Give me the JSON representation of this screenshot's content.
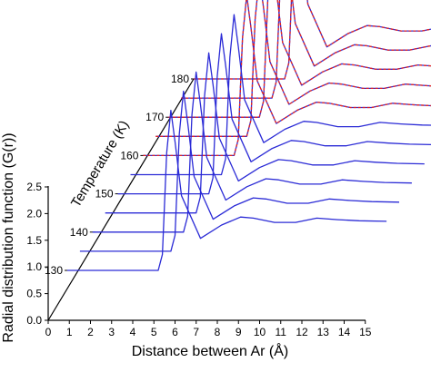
{
  "chart_data": {
    "type": "line",
    "style": "3d-waterfall",
    "xlabel": "Distance between Ar (Å)",
    "ylabel": "Radial distribution function (G(r))",
    "zlabel": "Temperature (K)",
    "xlim": [
      0,
      15
    ],
    "ylim": [
      0,
      2.5
    ],
    "xticks": [
      "0",
      "1",
      "2",
      "3",
      "4",
      "5",
      "6",
      "7",
      "8",
      "9",
      "10",
      "11",
      "12",
      "13",
      "14",
      "15"
    ],
    "yticks": [
      "0.0",
      "0.5",
      "1.0",
      "1.5",
      "2.0",
      "2.5"
    ],
    "zticks": [
      "130",
      "140",
      "150",
      "160",
      "170",
      "180"
    ],
    "colors": {
      "liquid": "#2b2bd6",
      "gas": "#e8241d",
      "axis": "#000000"
    },
    "series": [
      {
        "temperature": 130,
        "phase": "liquid",
        "x": [
          4.1,
          4.3,
          4.5,
          4.7,
          4.9,
          5.1,
          5.4,
          6.3,
          7.3,
          8.2,
          8.8,
          9.8,
          10.8,
          11.8,
          12.8,
          13.8,
          15.1
        ],
        "y": [
          0.0,
          0.0,
          0.3,
          2.2,
          3.0,
          2.4,
          1.4,
          0.6,
          0.85,
          1.0,
          0.98,
          0.9,
          0.9,
          0.98,
          0.95,
          0.93,
          0.92
        ]
      },
      {
        "temperature": 135,
        "phase": "liquid",
        "x": [
          4.1,
          4.3,
          4.5,
          4.7,
          4.9,
          5.1,
          5.4,
          6.3,
          7.3,
          8.2,
          8.8,
          9.8,
          10.8,
          11.8,
          12.8,
          13.8,
          15.1
        ],
        "y": [
          0.0,
          0.0,
          0.3,
          2.2,
          3.0,
          2.4,
          1.4,
          0.6,
          0.85,
          1.0,
          0.98,
          0.9,
          0.9,
          0.98,
          0.95,
          0.93,
          0.92
        ]
      },
      {
        "temperature": 140,
        "phase": "liquid",
        "x": [
          4.1,
          4.3,
          4.5,
          4.7,
          4.9,
          5.1,
          5.4,
          6.3,
          7.3,
          8.2,
          8.8,
          9.8,
          10.8,
          11.8,
          12.8,
          13.8,
          15.1
        ],
        "y": [
          0.0,
          0.0,
          0.3,
          2.2,
          3.0,
          2.4,
          1.4,
          0.6,
          0.85,
          1.0,
          0.98,
          0.9,
          0.9,
          0.98,
          0.95,
          0.93,
          0.92
        ]
      },
      {
        "temperature": 145,
        "phase": "liquid",
        "x": [
          4.1,
          4.3,
          4.5,
          4.7,
          4.9,
          5.1,
          5.4,
          6.3,
          7.3,
          8.2,
          8.8,
          9.8,
          10.8,
          11.8,
          12.8,
          13.8,
          15.1
        ],
        "y": [
          0.0,
          0.0,
          0.3,
          2.2,
          3.0,
          2.4,
          1.4,
          0.6,
          0.85,
          1.0,
          0.98,
          0.9,
          0.9,
          0.98,
          0.95,
          0.93,
          0.92
        ]
      },
      {
        "temperature": 150,
        "phase": "liquid",
        "x": [
          4.1,
          4.3,
          4.5,
          4.7,
          4.9,
          5.1,
          5.4,
          6.3,
          7.3,
          8.2,
          8.8,
          9.8,
          10.8,
          11.8,
          12.8,
          13.8,
          15.1
        ],
        "y": [
          0.0,
          0.0,
          0.3,
          2.2,
          3.0,
          2.4,
          1.4,
          0.6,
          0.85,
          1.0,
          0.98,
          0.9,
          0.9,
          0.98,
          0.95,
          0.93,
          0.92
        ]
      },
      {
        "temperature": 155,
        "phase": "liquid",
        "x": [
          4.1,
          4.3,
          4.5,
          4.7,
          4.9,
          5.1,
          5.4,
          6.3,
          7.3,
          8.2,
          8.8,
          9.8,
          10.8,
          11.8,
          12.8,
          13.8,
          15.1
        ],
        "y": [
          0.0,
          0.0,
          0.3,
          2.2,
          3.0,
          2.4,
          1.4,
          0.6,
          0.85,
          1.0,
          0.98,
          0.9,
          0.9,
          0.98,
          0.95,
          0.93,
          0.92
        ]
      },
      {
        "temperature": 160,
        "phase": "liquid",
        "x": [
          4.1,
          4.3,
          4.5,
          4.7,
          4.9,
          5.1,
          5.4,
          6.3,
          7.3,
          8.2,
          8.8,
          9.8,
          10.8,
          11.8,
          12.8,
          13.8,
          15.1
        ],
        "y": [
          0.0,
          0.0,
          0.3,
          2.2,
          3.0,
          2.4,
          1.4,
          0.6,
          0.85,
          1.0,
          0.98,
          0.9,
          0.9,
          0.98,
          0.95,
          0.93,
          0.92
        ]
      },
      {
        "temperature": 165,
        "phase": "liquid",
        "x": [
          4.1,
          4.3,
          4.5,
          4.7,
          4.9,
          5.1,
          5.4,
          6.3,
          7.3,
          8.2,
          8.8,
          9.8,
          10.8,
          11.8,
          12.8,
          13.8,
          15.1
        ],
        "y": [
          0.0,
          0.0,
          0.3,
          2.2,
          3.0,
          2.4,
          1.4,
          0.6,
          0.85,
          1.0,
          0.98,
          0.9,
          0.9,
          0.98,
          0.95,
          0.93,
          0.92
        ]
      },
      {
        "temperature": 170,
        "phase": "liquid",
        "x": [
          4.1,
          4.3,
          4.5,
          4.7,
          4.9,
          5.1,
          5.4,
          6.3,
          7.3,
          8.2,
          8.8,
          9.8,
          10.8,
          11.8,
          12.8,
          13.8,
          15.1
        ],
        "y": [
          0.0,
          0.0,
          0.3,
          2.2,
          3.0,
          2.4,
          1.4,
          0.6,
          0.85,
          1.0,
          0.98,
          0.9,
          0.9,
          0.98,
          0.95,
          0.93,
          0.92
        ]
      },
      {
        "temperature": 175,
        "phase": "liquid",
        "x": [
          4.1,
          4.3,
          4.5,
          4.7,
          4.9,
          5.1,
          5.4,
          6.3,
          7.3,
          8.2,
          8.8,
          9.8,
          10.8,
          11.8,
          12.8,
          13.8,
          15.1
        ],
        "y": [
          0.0,
          0.0,
          0.3,
          2.2,
          3.0,
          2.4,
          1.4,
          0.6,
          0.85,
          1.0,
          0.98,
          0.9,
          0.9,
          0.98,
          0.95,
          0.93,
          0.92
        ]
      },
      {
        "temperature": 180,
        "phase": "liquid",
        "x": [
          4.1,
          4.3,
          4.5,
          4.7,
          4.9,
          5.1,
          5.4,
          6.3,
          7.3,
          8.2,
          8.8,
          9.8,
          10.8,
          11.8,
          12.8,
          13.8,
          15.1
        ],
        "y": [
          0.0,
          0.0,
          0.3,
          2.2,
          3.0,
          2.4,
          1.4,
          0.6,
          0.85,
          1.0,
          0.98,
          0.9,
          0.9,
          0.98,
          0.95,
          0.93,
          0.92
        ]
      },
      {
        "temperature": 160,
        "phase": "gas",
        "x": [
          4.1,
          4.3,
          4.5,
          4.7,
          4.9,
          5.1,
          5.4,
          6.3,
          7.3,
          8.2,
          8.8,
          9.8,
          10.8,
          11.8,
          12.8,
          13.8,
          15.1
        ],
        "y": [
          0.0,
          0.0,
          0.3,
          2.2,
          3.0,
          2.4,
          1.4,
          0.6,
          0.85,
          1.0,
          0.98,
          0.9,
          0.9,
          0.98,
          0.95,
          0.93,
          0.92
        ]
      },
      {
        "temperature": 165,
        "phase": "gas",
        "x": [
          4.1,
          4.3,
          4.5,
          4.7,
          4.9,
          5.1,
          5.4,
          6.3,
          7.3,
          8.2,
          8.8,
          9.8,
          10.8,
          11.8,
          12.8,
          13.8,
          15.1
        ],
        "y": [
          0.0,
          0.0,
          0.3,
          2.2,
          3.0,
          2.4,
          1.4,
          0.6,
          0.85,
          1.0,
          0.98,
          0.9,
          0.9,
          0.98,
          0.95,
          0.93,
          0.92
        ]
      },
      {
        "temperature": 170,
        "phase": "gas",
        "x": [
          4.1,
          4.3,
          4.5,
          4.7,
          4.9,
          5.1,
          5.4,
          6.3,
          7.3,
          8.2,
          8.8,
          9.8,
          10.8,
          11.8,
          12.8,
          13.8,
          15.1
        ],
        "y": [
          0.0,
          0.0,
          0.3,
          2.2,
          3.0,
          2.4,
          1.4,
          0.6,
          0.85,
          1.0,
          0.98,
          0.9,
          0.9,
          0.98,
          0.95,
          0.93,
          0.92
        ]
      },
      {
        "temperature": 175,
        "phase": "gas",
        "x": [
          4.1,
          4.3,
          4.5,
          4.7,
          4.9,
          5.1,
          5.4,
          6.3,
          7.3,
          8.2,
          8.8,
          9.8,
          10.8,
          11.8,
          12.8,
          13.8,
          15.1
        ],
        "y": [
          0.0,
          0.0,
          0.3,
          2.2,
          3.0,
          2.4,
          1.4,
          0.6,
          0.85,
          1.0,
          0.98,
          0.9,
          0.9,
          0.98,
          0.95,
          0.93,
          0.92
        ]
      },
      {
        "temperature": 180,
        "phase": "gas",
        "x": [
          4.1,
          4.3,
          4.5,
          4.7,
          4.9,
          5.1,
          5.4,
          6.3,
          7.3,
          8.2,
          8.8,
          9.8,
          10.8,
          11.8,
          12.8,
          13.8,
          15.1
        ],
        "y": [
          0.0,
          0.0,
          0.3,
          2.2,
          3.0,
          2.4,
          1.4,
          0.6,
          0.85,
          1.0,
          0.98,
          0.9,
          0.9,
          0.98,
          0.95,
          0.93,
          0.92
        ]
      }
    ]
  }
}
